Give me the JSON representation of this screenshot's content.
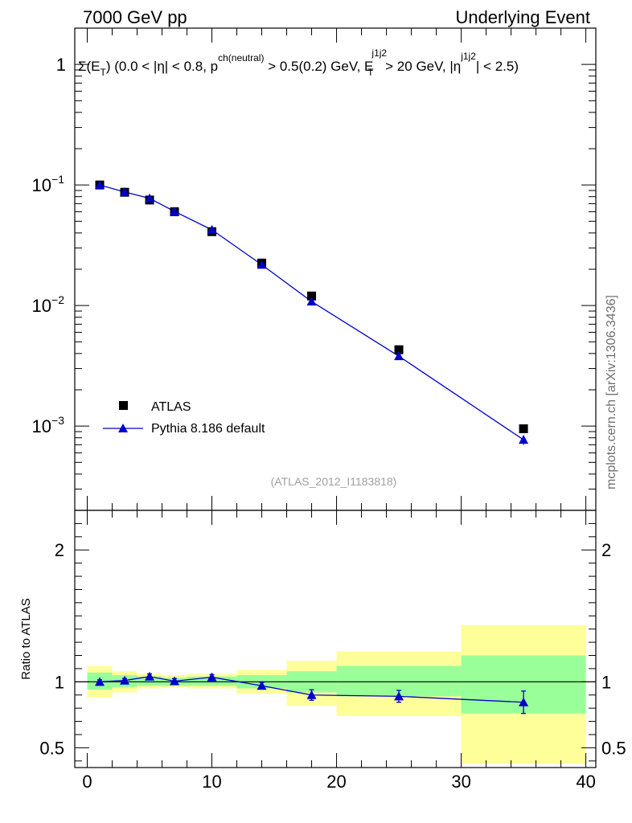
{
  "header": {
    "left": "7000 GeV pp",
    "right": "Underlying Event"
  },
  "chart_data": [
    {
      "type": "scatter",
      "panel": "main",
      "title": "",
      "annotation": {
        "base": "Σ(E",
        "sub_T": "T",
        "part1": ") (0.0 < |η| < 0.8, p",
        "sup_ch": "ch(neutral)",
        "part2": " > 0.5(0.2) GeV, E",
        "sup_j1j2_a": "j1j2",
        "sub_T2": "T",
        "part3": " > 20 GeV, |η",
        "sup_j1j2_b": "j1j2",
        "part4": "| < 2.5)"
      },
      "yscale": "log",
      "xlim": [
        -1,
        40.8
      ],
      "ylim": [
        0.0002,
        2
      ],
      "xlabel": "",
      "ylabel": "",
      "y_ticks": [
        {
          "value": 1,
          "base": "1",
          "exp": ""
        },
        {
          "value": 0.1,
          "base": "10",
          "exp": "−1"
        },
        {
          "value": 0.01,
          "base": "10",
          "exp": "−2"
        },
        {
          "value": 0.001,
          "base": "10",
          "exp": "−3"
        }
      ],
      "series": [
        {
          "name": "ATLAS",
          "marker": "square",
          "color": "#000000",
          "x": [
            1,
            3,
            5,
            7,
            10,
            14,
            18,
            25,
            35
          ],
          "y": [
            0.1,
            0.087,
            0.075,
            0.06,
            0.041,
            0.0225,
            0.012,
            0.0043,
            0.00095
          ]
        },
        {
          "name": "Pythia 8.186 default",
          "marker": "triangle",
          "color": "#0000cc",
          "x": [
            1,
            3,
            5,
            7,
            10,
            14,
            18,
            25,
            35
          ],
          "y": [
            0.1,
            0.0875,
            0.0775,
            0.0603,
            0.0425,
            0.0218,
            0.0108,
            0.0038,
            0.00077
          ],
          "yerr_low": [
            0,
            0,
            0,
            0,
            0,
            0,
            0,
            0,
            7e-05
          ],
          "yerr_high": [
            0,
            0,
            0,
            0,
            0,
            0,
            0,
            0,
            7e-05
          ]
        }
      ],
      "legend_placement": "bottom-left",
      "watermark": "(ATLAS_2012_I1183818)",
      "side_label": "mcplots.cern.ch [arXiv:1306.3436]"
    },
    {
      "type": "scatter",
      "panel": "ratio",
      "ylabel": "Ratio to ATLAS",
      "xlim": [
        -1,
        40.8
      ],
      "ylim": [
        0.35,
        2.3
      ],
      "x_ticks": [
        0,
        10,
        20,
        30,
        40
      ],
      "y_ticks": [
        0.5,
        1,
        2
      ],
      "reference_line": 1,
      "bands": {
        "x_edges": [
          0,
          2,
          4,
          6,
          8,
          12,
          16,
          20,
          30,
          40
        ],
        "green_low": [
          0.94,
          0.96,
          0.97,
          0.97,
          0.97,
          0.95,
          0.92,
          0.89,
          0.76
        ],
        "green_high": [
          1.07,
          1.05,
          1.04,
          1.03,
          1.04,
          1.05,
          1.08,
          1.12,
          1.2
        ],
        "yellow_low": [
          0.88,
          0.92,
          0.95,
          0.96,
          0.95,
          0.91,
          0.82,
          0.74,
          0.38
        ],
        "yellow_high": [
          1.12,
          1.08,
          1.06,
          1.05,
          1.06,
          1.09,
          1.16,
          1.23,
          1.43
        ]
      },
      "series": [
        {
          "name": "Pythia 8.186 default",
          "color": "#0000cc",
          "x": [
            1,
            3,
            5,
            7,
            10,
            14,
            18,
            25,
            35
          ],
          "y": [
            1.0,
            1.01,
            1.04,
            1.005,
            1.035,
            0.97,
            0.9,
            0.89,
            0.845
          ],
          "yerr": [
            0.015,
            0.015,
            0.02,
            0.02,
            0.02,
            0.025,
            0.04,
            0.045,
            0.085
          ]
        }
      ]
    }
  ]
}
